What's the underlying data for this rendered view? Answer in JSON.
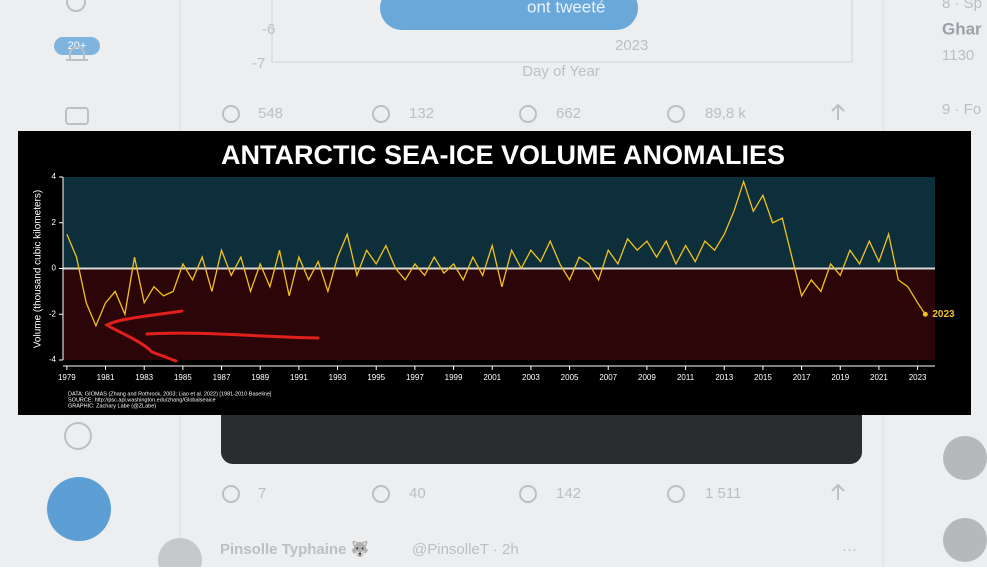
{
  "ui": {
    "sidebar_badge": "20+",
    "top_button": "ont tweeté",
    "bg_chart": {
      "tick_a": "-6",
      "tick_b": "-7",
      "label": "2023",
      "xlabel": "Day of Year"
    },
    "tweet1_stats": [
      "548",
      "132",
      "662",
      "89,8 k"
    ],
    "tweet2_stats": [
      "7",
      "40",
      "142",
      "1 511"
    ],
    "next_tweet": {
      "name": "Pinsolle Typhaine 🐺",
      "handle_time": "@PinsolleT · 2h"
    },
    "trends": [
      "8 · Sp",
      "Ghar",
      "1130",
      "9 · Fo"
    ]
  },
  "chart_data": {
    "type": "line",
    "title": "ANTARCTIC SEA-ICE VOLUME ANOMALIES",
    "ylabel": "Volume (thousand cubic kilometers)",
    "x": [
      1979,
      1979.5,
      1980,
      1980.5,
      1981,
      1981.5,
      1982,
      1982.5,
      1983,
      1983.5,
      1984,
      1984.5,
      1985,
      1985.5,
      1986,
      1986.5,
      1987,
      1987.5,
      1988,
      1988.5,
      1989,
      1989.5,
      1990,
      1990.5,
      1991,
      1991.5,
      1992,
      1992.5,
      1993,
      1993.5,
      1994,
      1994.5,
      1995,
      1995.5,
      1996,
      1996.5,
      1997,
      1997.5,
      1998,
      1998.5,
      1999,
      1999.5,
      2000,
      2000.5,
      2001,
      2001.5,
      2002,
      2002.5,
      2003,
      2003.5,
      2004,
      2004.5,
      2005,
      2005.5,
      2006,
      2006.5,
      2007,
      2007.5,
      2008,
      2008.5,
      2009,
      2009.5,
      2010,
      2010.5,
      2011,
      2011.5,
      2012,
      2012.5,
      2013,
      2013.5,
      2014,
      2014.5,
      2015,
      2015.5,
      2016,
      2016.5,
      2017,
      2017.5,
      2018,
      2018.5,
      2019,
      2019.5,
      2020,
      2020.5,
      2021,
      2021.5,
      2022,
      2022.5,
      2023,
      2023.4
    ],
    "series": [
      {
        "name": "Volume anomaly",
        "color": "#f2c21b",
        "values": [
          1.5,
          0.5,
          -1.5,
          -2.5,
          -1.5,
          -1.0,
          -2.0,
          0.5,
          -1.5,
          -0.8,
          -1.2,
          -1.0,
          0.2,
          -0.5,
          0.5,
          -1.0,
          0.8,
          -0.3,
          0.5,
          -1.0,
          0.2,
          -0.8,
          0.8,
          -1.2,
          0.5,
          -0.5,
          0.3,
          -1.0,
          0.5,
          1.5,
          -0.3,
          0.8,
          0.2,
          1.0,
          0.0,
          -0.5,
          0.2,
          -0.3,
          0.5,
          -0.2,
          0.2,
          -0.5,
          0.5,
          -0.3,
          1.0,
          -0.8,
          0.8,
          0.0,
          0.8,
          0.3,
          1.2,
          0.2,
          -0.5,
          0.5,
          0.2,
          -0.5,
          0.8,
          0.2,
          1.3,
          0.8,
          1.2,
          0.5,
          1.2,
          0.2,
          1.0,
          0.3,
          1.2,
          0.8,
          1.5,
          2.5,
          3.8,
          2.5,
          3.2,
          2.0,
          2.2,
          0.5,
          -1.2,
          -0.5,
          -1.0,
          0.2,
          -0.3,
          0.8,
          0.2,
          1.2,
          0.3,
          1.5,
          -0.5,
          -0.8,
          -1.5,
          -2.0
        ]
      }
    ],
    "end_label": "2023",
    "xlim": [
      1978.8,
      2023.9
    ],
    "ylim": [
      -4,
      4
    ],
    "xticks": [
      1979,
      1981,
      1983,
      1985,
      1987,
      1989,
      1991,
      1993,
      1995,
      1997,
      1999,
      2001,
      2003,
      2005,
      2007,
      2009,
      2011,
      2013,
      2015,
      2017,
      2019,
      2021,
      2023
    ],
    "yticks": [
      -4,
      -2,
      0,
      2,
      4
    ],
    "notes": [
      "DATA: GIOMAS (Zhang and Rothrock, 2003; Liao et al. 2022) [1981-2010 Baseline]",
      "SOURCE: http://psc.apl.washington.edu/zhang/Globalseaice",
      "GRAPHIC: Zachary Labe (@ZLabe)"
    ]
  }
}
